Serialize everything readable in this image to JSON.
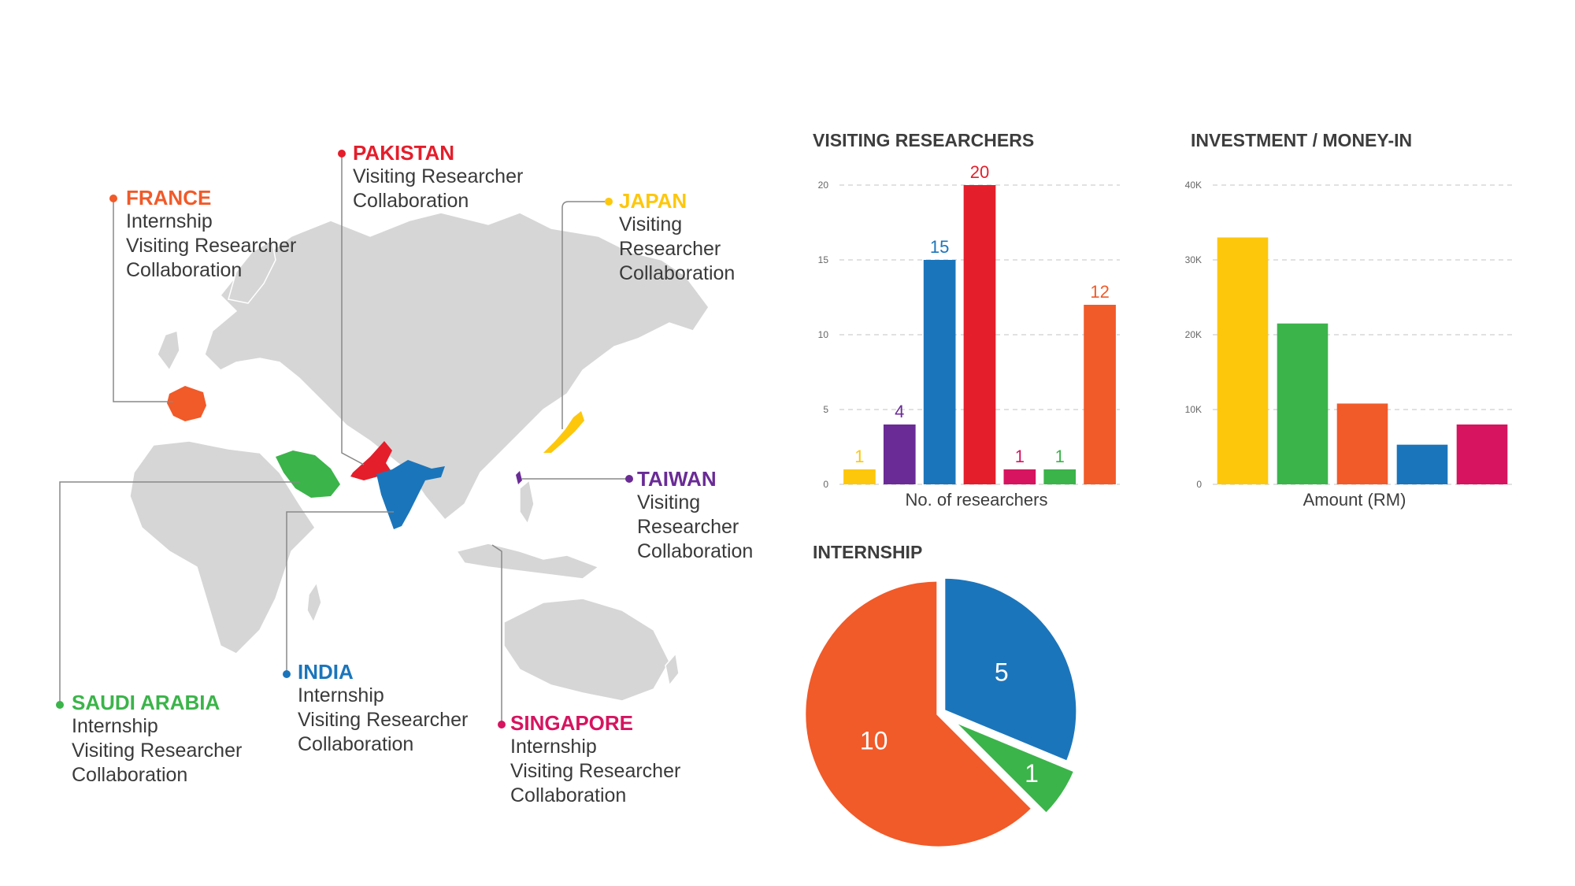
{
  "colors": {
    "yellow": "#FDC70C",
    "purple": "#6A2B96",
    "blue": "#1B75BB",
    "red": "#E41E2B",
    "pink": "#D6145F",
    "green": "#3BB44A",
    "orange": "#F15A29",
    "land": "#d6d6d6",
    "grid": "#cfcfcf"
  },
  "map": {
    "countries": [
      {
        "name": "FRANCE",
        "color": "#F15A29",
        "lines": [
          "Internship",
          "Visiting Researcher",
          "Collaboration"
        ]
      },
      {
        "name": "PAKISTAN",
        "color": "#E41E2B",
        "lines": [
          "Visiting Researcher",
          "Collaboration"
        ]
      },
      {
        "name": "JAPAN",
        "color": "#FDC70C",
        "lines": [
          "Visiting",
          "Researcher",
          "Collaboration"
        ]
      },
      {
        "name": "TAIWAN",
        "color": "#6A2B96",
        "lines": [
          "Visiting",
          "Researcher",
          "Collaboration"
        ]
      },
      {
        "name": "SAUDI ARABIA",
        "color": "#3BB44A",
        "lines": [
          "Internship",
          "Visiting Researcher",
          "Collaboration"
        ]
      },
      {
        "name": "INDIA",
        "color": "#1B75BB",
        "lines": [
          "Internship",
          "Visiting Researcher",
          "Collaboration"
        ]
      },
      {
        "name": "SINGAPORE",
        "color": "#D6145F",
        "lines": [
          "Internship",
          "Visiting Researcher",
          "Collaboration"
        ]
      }
    ]
  },
  "chart_data": [
    {
      "type": "bar",
      "title": "VISITING RESEARCHERS",
      "xlabel": "No. of researchers",
      "ylabel": "",
      "ylim": [
        0,
        20
      ],
      "yticks": [
        "0",
        "5",
        "10",
        "15",
        "20"
      ],
      "values": [
        1,
        4,
        15,
        20,
        1,
        1,
        12
      ],
      "value_labels": [
        "1",
        "4",
        "15",
        "20",
        "1",
        "1",
        "12"
      ],
      "colors": [
        "#FDC70C",
        "#6A2B96",
        "#1B75BB",
        "#E41E2B",
        "#D6145F",
        "#3BB44A",
        "#F15A29"
      ],
      "grid": true
    },
    {
      "type": "bar",
      "title": "INVESTMENT / MONEY-IN",
      "xlabel": "Amount (RM)",
      "ylabel": "",
      "ylim": [
        0,
        40000
      ],
      "yticks": [
        "0",
        "10K",
        "20K",
        "30K",
        "40K"
      ],
      "values": [
        33000,
        21500,
        10800,
        5300,
        8000
      ],
      "colors": [
        "#FDC70C",
        "#3BB44A",
        "#F15A29",
        "#1B75BB",
        "#D6145F"
      ],
      "grid": true
    },
    {
      "type": "pie",
      "title": "INTERNSHIP",
      "values": [
        5,
        1,
        10
      ],
      "value_labels": [
        "5",
        "1",
        "10"
      ],
      "colors": [
        "#1B75BB",
        "#3BB44A",
        "#F15A29"
      ]
    }
  ]
}
